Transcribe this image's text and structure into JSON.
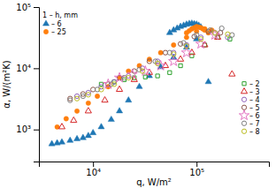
{
  "chart_data": {
    "type": "scatter",
    "xlabel": "q, W/m²",
    "ylabel": "α, W/(m²K)",
    "log": true,
    "xlim": [
      3000,
      500000
    ],
    "ylim": [
      300,
      100000
    ],
    "xticks": [
      {
        "value": 10000,
        "label": "10⁴"
      },
      {
        "value": 100000,
        "label": "10⁵"
      }
    ],
    "yticks": [
      {
        "value": 1000,
        "label": "10³"
      },
      {
        "value": 10000,
        "label": "10⁴"
      },
      {
        "value": 100000,
        "label": "10⁵"
      }
    ],
    "legend": "upper-left",
    "legend_title": "1 – h, mm",
    "series": [
      {
        "name": "– 6",
        "marker": "filled-triangle",
        "x": [
          4000,
          4500,
          5000,
          6000,
          7000,
          8000,
          9000,
          10000,
          12000,
          15000,
          18000,
          22000,
          28000,
          35000,
          45000,
          60000,
          80000,
          100000,
          130000,
          55000,
          60000,
          65000,
          70000,
          75000,
          80000,
          85000,
          90000,
          95000,
          100000,
          105000,
          110000
        ],
        "values": [
          580,
          600,
          620,
          660,
          700,
          730,
          790,
          880,
          1100,
          1450,
          2000,
          3000,
          5000,
          7500,
          10500,
          15000,
          22000,
          30000,
          6000,
          38000,
          42000,
          45000,
          48000,
          50000,
          52000,
          53500,
          54000,
          53000,
          52000,
          50000,
          47000
        ]
      },
      {
        "name": "– 25",
        "marker": "filled-circle",
        "x": [
          4500,
          5500,
          7000,
          9000,
          11000,
          14000,
          18000,
          22000,
          28000,
          35000,
          45000,
          60000,
          80000,
          100000,
          120000,
          140000,
          80000,
          85000,
          90000,
          95000,
          100000,
          105000,
          110000,
          115000,
          120000,
          130000
        ],
        "values": [
          1100,
          1500,
          2000,
          2700,
          3500,
          5000,
          7000,
          9000,
          11000,
          14000,
          18000,
          24000,
          32000,
          40000,
          44000,
          42000,
          38000,
          41000,
          44000,
          46000,
          48000,
          47000,
          46000,
          44000,
          42000,
          38000
        ]
      },
      {
        "name": "– 2",
        "marker": "open-square",
        "x": [
          12000,
          16000,
          20000,
          25000,
          32000,
          42000,
          55000,
          70000,
          90000,
          120000,
          160000,
          210000
        ],
        "values": [
          5500,
          6000,
          6500,
          7000,
          7200,
          7500,
          8500,
          11000,
          16000,
          24000,
          32000,
          30000
        ]
      },
      {
        "name": "– 3",
        "marker": "open-triangle",
        "x": [
          5000,
          6500,
          9000,
          13000,
          18000,
          25000,
          35000,
          50000,
          70000,
          90000,
          120000,
          160000,
          220000
        ],
        "values": [
          1100,
          1400,
          2000,
          3000,
          4500,
          6500,
          8500,
          11000,
          14000,
          18000,
          24000,
          32000,
          8000
        ]
      },
      {
        "name": "– 4",
        "marker": "open-circle",
        "x": [
          7000,
          9000,
          12000,
          16000,
          22000,
          30000,
          42000,
          60000,
          80000,
          110000,
          150000,
          200000
        ],
        "values": [
          3500,
          4000,
          5000,
          6000,
          7500,
          10000,
          13000,
          18000,
          24000,
          32000,
          38000,
          32000
        ]
      },
      {
        "name": "– 5",
        "marker": "open-circle",
        "x": [
          6000,
          8000,
          10000,
          14000,
          18000,
          25000,
          35000,
          50000,
          70000,
          95000,
          130000,
          170000
        ],
        "values": [
          3200,
          3800,
          4500,
          5500,
          7000,
          9000,
          13000,
          18000,
          25000,
          33000,
          40000,
          38000
        ]
      },
      {
        "name": "– 6",
        "marker": "open-star",
        "x": [
          14000,
          18000,
          24000,
          32000,
          45000,
          60000,
          80000,
          110000,
          150000
        ],
        "values": [
          5500,
          7000,
          8000,
          9000,
          11000,
          13000,
          18000,
          25000,
          35000
        ]
      },
      {
        "name": "– 7",
        "marker": "open-circle",
        "x": [
          6000,
          8000,
          11000,
          15000,
          20000,
          28000,
          40000,
          55000,
          75000,
          100000,
          135000,
          175000,
          220000
        ],
        "values": [
          3000,
          3500,
          4500,
          5500,
          7000,
          9500,
          13000,
          18000,
          26000,
          35000,
          42000,
          45000,
          35000
        ]
      },
      {
        "name": "– 8",
        "marker": "open-circle",
        "x": [
          7000,
          9000,
          12000,
          16000,
          22000,
          30000,
          42000,
          60000,
          80000,
          110000,
          150000,
          200000
        ],
        "values": [
          3200,
          3700,
          4500,
          5500,
          7000,
          9000,
          12000,
          17000,
          23000,
          30000,
          38000,
          36000
        ]
      }
    ]
  }
}
